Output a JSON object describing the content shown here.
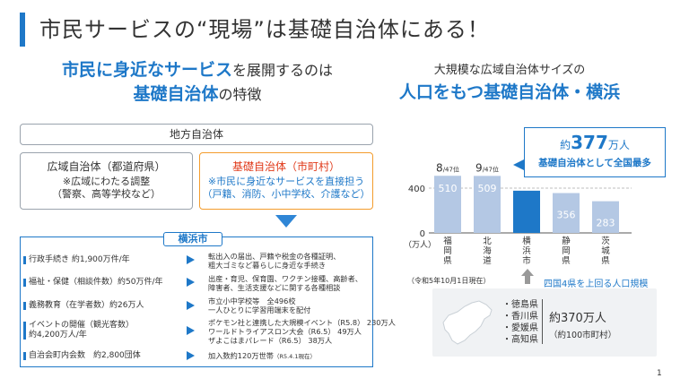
{
  "title": "市民サービスの“現場”は基礎自治体にある！",
  "left": {
    "heading_line1_blue": "市民に身近なサービス",
    "heading_line1_rest": "を展開するのは",
    "heading_line2_blue": "基礎自治体",
    "heading_line2_rest": "の特徴",
    "gov_label": "地方自治体",
    "pref": {
      "title": "広域自治体（都道府県）",
      "line1": "※広域にわたる調整",
      "line2": "（警察、高等学校など）"
    },
    "muni": {
      "title": "基礎自治体（市町村）",
      "line1": "※市民に身近なサービスを直接担う",
      "line2": "（戸籍、消防、小中学校、介護など）"
    },
    "yokohama_label": "横浜市",
    "rows": [
      {
        "left": "行政手続き 約1,900万件/年",
        "right1": "転出入の届出、戸籍や税金の各種証明、",
        "right2": "粗大ゴミなど暮らしに身近な手続き"
      },
      {
        "left": "福祉・保健（相談件数）約50万件/年",
        "right1": "出産・育児、保育園、ワクチン接種、高齢者、",
        "right2": "障害者、生活支援などに関する各種相談"
      },
      {
        "left": "義務教育（在学者数）約26万人",
        "right1": "市立小中学校等　全496校",
        "right2": "一人ひとりに学習用端末を配付"
      },
      {
        "left": "イベントの開催（観光客数）",
        "left2": "約4,200万人/年",
        "right1": "ポケモン社と連携した大規模イベント（R5.8） 230万人",
        "right2": "ワールドトライアスロン大会（R6.5） 49万人",
        "right3": "ザよこはまパレード（R6.5） 38万人"
      },
      {
        "left": "自治会町内会数　約2,800団体",
        "right1": "加入数約120万世帯",
        "right1_small": "（R5.4.1現在）"
      }
    ]
  },
  "right": {
    "heading1": "大規模な広域自治体サイズの",
    "heading2": "人口をもつ基礎自治体・横浜",
    "callout": {
      "prefix": "約",
      "number": "377",
      "suffix": "万人",
      "line2": "基礎自治体として全国最多"
    },
    "note": "（令和5年10月1日現在）",
    "up_label": "四国4県を上回る人口規模",
    "shikoku": {
      "prefs": [
        "・徳島県",
        "・香川県",
        "・愛媛県",
        "・高知県"
      ],
      "total": "約370万人",
      "sub": "（約100市町村）"
    }
  },
  "chart_data": {
    "type": "bar",
    "categories": [
      "福岡県",
      "北海道",
      "横浜市",
      "静岡県",
      "茨城県"
    ],
    "values": [
      510,
      509,
      377,
      356,
      283
    ],
    "value_labels": [
      "510",
      "509",
      "",
      "356",
      "283"
    ],
    "rank_labels": [
      {
        "rank": "8",
        "of": "/47位"
      },
      {
        "rank": "9",
        "of": "/47位"
      },
      null,
      null,
      null
    ],
    "ylabel": "（万人）",
    "yticks": [
      0,
      400
    ],
    "ylim": [
      0,
      560
    ],
    "colors": {
      "default": "#b4c8e4",
      "highlight": "#1e78c8"
    },
    "highlight_index": 2
  },
  "page_number": "1"
}
